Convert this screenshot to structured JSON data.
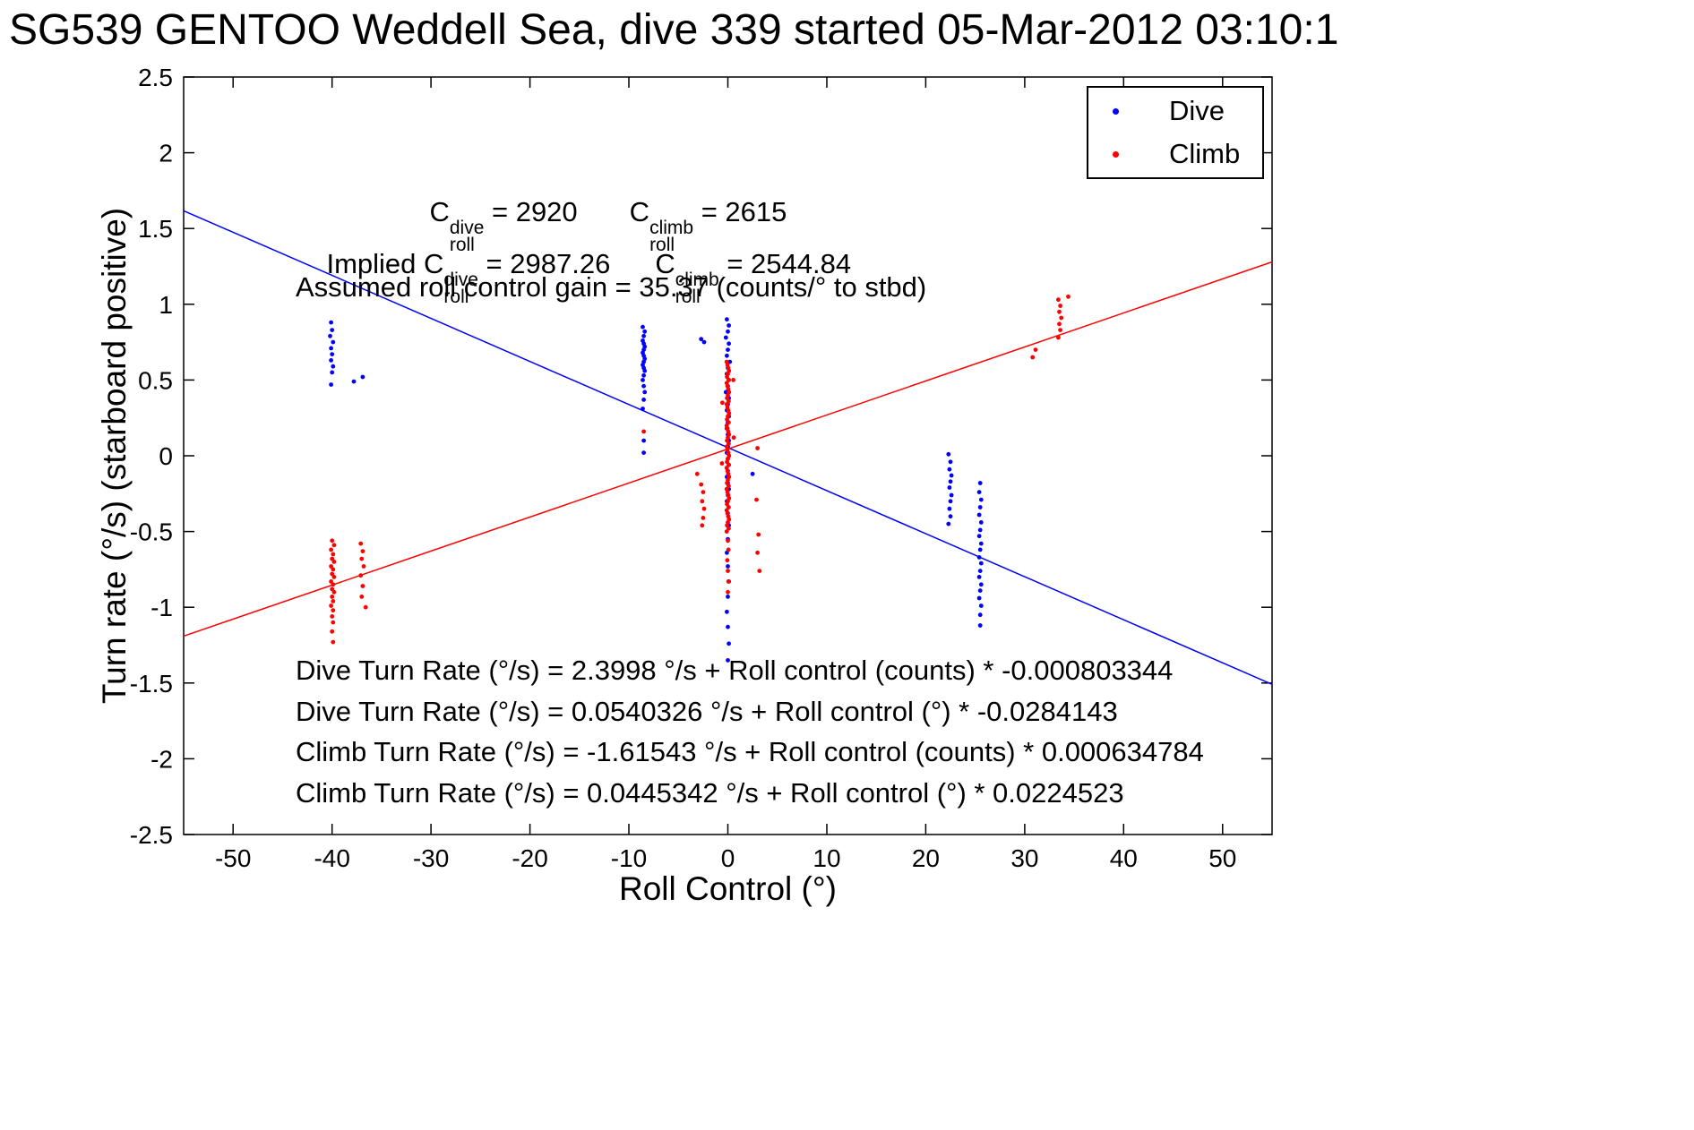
{
  "title": "SG539 GENTOO Weddell Sea, dive 339 started 05-Mar-2012 03:10:1",
  "chart_data": {
    "type": "scatter",
    "title": "SG539 GENTOO Weddell Sea, dive 339 started 05-Mar-2012 03:10:1",
    "xlabel": "Roll Control (°)",
    "ylabel": "Turn rate (°/s) (starboard positive)",
    "xlim": [
      -55,
      55
    ],
    "ylim": [
      -2.5,
      2.5
    ],
    "grid": false,
    "legend_position": "northeast",
    "xticks": [
      -50,
      -40,
      -30,
      -20,
      -10,
      0,
      10,
      20,
      30,
      40,
      50
    ],
    "xtick_labels": [
      "-50",
      "-40",
      "-30",
      "-20",
      "-10",
      "0",
      "10",
      "20",
      "30",
      "40",
      "50"
    ],
    "yticks": [
      -2.5,
      -2,
      -1.5,
      -1,
      -0.5,
      0,
      0.5,
      1,
      1.5,
      2,
      2.5
    ],
    "ytick_labels": [
      "-2.5",
      "-2",
      "-1.5",
      "-1",
      "-0.5",
      "0",
      "0.5",
      "1",
      "1.5",
      "2",
      "2.5"
    ],
    "series": [
      {
        "name": "dive",
        "label": "Dive",
        "color": "#0000FF",
        "marker": "point",
        "points": [
          [
            -40.1,
            0.88
          ],
          [
            -40,
            0.83
          ],
          [
            -40.2,
            0.79
          ],
          [
            -39.9,
            0.75
          ],
          [
            -40.1,
            0.71
          ],
          [
            -40,
            0.67
          ],
          [
            -40.1,
            0.63
          ],
          [
            -39.9,
            0.59
          ],
          [
            -40,
            0.55
          ],
          [
            -40.1,
            0.47
          ],
          [
            -37.8,
            0.49
          ],
          [
            -36.9,
            0.52
          ],
          [
            -8.6,
            0.85
          ],
          [
            -8.4,
            0.82
          ],
          [
            -8.5,
            0.79
          ],
          [
            -8.6,
            0.76
          ],
          [
            -8.5,
            0.74
          ],
          [
            -8.4,
            0.72
          ],
          [
            -8.5,
            0.7
          ],
          [
            -8.6,
            0.68
          ],
          [
            -8.5,
            0.66
          ],
          [
            -8.4,
            0.64
          ],
          [
            -8.5,
            0.62
          ],
          [
            -8.6,
            0.6
          ],
          [
            -8.5,
            0.58
          ],
          [
            -8.4,
            0.56
          ],
          [
            -8.5,
            0.53
          ],
          [
            -8.6,
            0.5
          ],
          [
            -8.5,
            0.46
          ],
          [
            -8.4,
            0.42
          ],
          [
            -8.5,
            0.37
          ],
          [
            -8.6,
            0.31
          ],
          [
            -8.5,
            0.1
          ],
          [
            -8.5,
            0.02
          ],
          [
            -2.7,
            0.77
          ],
          [
            -2.4,
            0.75
          ],
          [
            -0.1,
            0.9
          ],
          [
            0.1,
            0.86
          ],
          [
            0,
            0.82
          ],
          [
            -0.2,
            0.78
          ],
          [
            0.1,
            0.74
          ],
          [
            0,
            0.7
          ],
          [
            -0.1,
            0.66
          ],
          [
            0.2,
            0.62
          ],
          [
            0,
            0.58
          ],
          [
            -0.1,
            0.54
          ],
          [
            0.1,
            0.5
          ],
          [
            0,
            0.46
          ],
          [
            -0.2,
            0.42
          ],
          [
            0.1,
            0.38
          ],
          [
            0,
            0.34
          ],
          [
            -0.1,
            0.3
          ],
          [
            0.1,
            0.26
          ],
          [
            0,
            0.22
          ],
          [
            -0.1,
            0.18
          ],
          [
            0,
            0.14
          ],
          [
            0.1,
            0.1
          ],
          [
            0,
            0.06
          ],
          [
            -0.1,
            0.02
          ],
          [
            0,
            -0.02
          ],
          [
            0.1,
            -0.06
          ],
          [
            0,
            -0.1
          ],
          [
            -0.1,
            -0.14
          ],
          [
            0,
            -0.18
          ],
          [
            0.1,
            -0.22
          ],
          [
            0,
            -0.26
          ],
          [
            -0.1,
            -0.3
          ],
          [
            0,
            -0.38
          ],
          [
            0.1,
            -0.46
          ],
          [
            0,
            -0.55
          ],
          [
            -0.1,
            -0.64
          ],
          [
            0,
            -0.73
          ],
          [
            0.1,
            -0.83
          ],
          [
            0,
            -0.93
          ],
          [
            -0.1,
            -1.03
          ],
          [
            0,
            -1.13
          ],
          [
            0.1,
            -1.24
          ],
          [
            0,
            -1.35
          ],
          [
            2.5,
            -0.12
          ],
          [
            22.3,
            0.01
          ],
          [
            22.5,
            -0.04
          ],
          [
            22.4,
            -0.09
          ],
          [
            22.6,
            -0.13
          ],
          [
            22.5,
            -0.17
          ],
          [
            22.4,
            -0.21
          ],
          [
            22.6,
            -0.26
          ],
          [
            22.5,
            -0.3
          ],
          [
            22.4,
            -0.35
          ],
          [
            22.5,
            -0.4
          ],
          [
            22.3,
            -0.45
          ],
          [
            25.5,
            -0.18
          ],
          [
            25.4,
            -0.24
          ],
          [
            25.6,
            -0.29
          ],
          [
            25.5,
            -0.34
          ],
          [
            25.4,
            -0.39
          ],
          [
            25.6,
            -0.44
          ],
          [
            25.5,
            -0.49
          ],
          [
            25.4,
            -0.53
          ],
          [
            25.6,
            -0.58
          ],
          [
            25.5,
            -0.62
          ],
          [
            25.4,
            -0.67
          ],
          [
            25.6,
            -0.71
          ],
          [
            25.5,
            -0.76
          ],
          [
            25.4,
            -0.8
          ],
          [
            25.6,
            -0.85
          ],
          [
            25.5,
            -0.89
          ],
          [
            25.4,
            -0.94
          ],
          [
            25.6,
            -0.99
          ],
          [
            25.5,
            -1.05
          ],
          [
            25.5,
            -1.12
          ]
        ]
      },
      {
        "name": "climb",
        "label": "Climb",
        "color": "#FF0000",
        "marker": "point",
        "points": [
          [
            -40,
            -0.56
          ],
          [
            -39.8,
            -0.59
          ],
          [
            -40.1,
            -0.62
          ],
          [
            -39.9,
            -0.65
          ],
          [
            -40,
            -0.68
          ],
          [
            -39.8,
            -0.7
          ],
          [
            -40.1,
            -0.73
          ],
          [
            -39.9,
            -0.75
          ],
          [
            -40,
            -0.78
          ],
          [
            -39.8,
            -0.8
          ],
          [
            -40.1,
            -0.83
          ],
          [
            -39.9,
            -0.85
          ],
          [
            -40,
            -0.88
          ],
          [
            -39.8,
            -0.9
          ],
          [
            -40,
            -0.93
          ],
          [
            -39.9,
            -0.96
          ],
          [
            -40.1,
            -0.99
          ],
          [
            -39.9,
            -1.02
          ],
          [
            -40,
            -1.06
          ],
          [
            -39.9,
            -1.1
          ],
          [
            -40,
            -1.16
          ],
          [
            -39.9,
            -1.23
          ],
          [
            -37.1,
            -0.58
          ],
          [
            -36.9,
            -0.63
          ],
          [
            -37,
            -0.68
          ],
          [
            -36.8,
            -0.73
          ],
          [
            -37.1,
            -0.79
          ],
          [
            -36.9,
            -0.86
          ],
          [
            -37,
            -0.93
          ],
          [
            -36.6,
            -1
          ],
          [
            -3.1,
            -0.12
          ],
          [
            -2.7,
            -0.19
          ],
          [
            -2.5,
            -0.24
          ],
          [
            -2.6,
            -0.3
          ],
          [
            -2.4,
            -0.35
          ],
          [
            -2.5,
            -0.41
          ],
          [
            -2.6,
            -0.46
          ],
          [
            -8.5,
            0.16
          ],
          [
            -0.12,
            0.62
          ],
          [
            -0.04,
            0.6
          ],
          [
            0.04,
            0.58
          ],
          [
            0.12,
            0.56
          ],
          [
            0,
            0.54
          ],
          [
            -0.08,
            0.52
          ],
          [
            0.08,
            0.5
          ],
          [
            -0.12,
            0.48
          ],
          [
            -0.04,
            0.46
          ],
          [
            0.04,
            0.44
          ],
          [
            0.12,
            0.42
          ],
          [
            0,
            0.4
          ],
          [
            -0.08,
            0.38
          ],
          [
            0.08,
            0.36
          ],
          [
            -0.12,
            0.34
          ],
          [
            -0.04,
            0.32
          ],
          [
            0.04,
            0.3
          ],
          [
            0.12,
            0.28
          ],
          [
            0,
            0.26
          ],
          [
            -0.08,
            0.24
          ],
          [
            0.08,
            0.22
          ],
          [
            -0.12,
            0.2
          ],
          [
            -0.04,
            0.18
          ],
          [
            0.04,
            0.16
          ],
          [
            0.12,
            0.14
          ],
          [
            0,
            0.12
          ],
          [
            -0.08,
            0.1
          ],
          [
            0.08,
            0.08
          ],
          [
            -0.12,
            0.06
          ],
          [
            -0.04,
            0.04
          ],
          [
            0.04,
            0.02
          ],
          [
            0.12,
            0
          ],
          [
            0,
            -0.02
          ],
          [
            -0.08,
            -0.04
          ],
          [
            0.08,
            -0.06
          ],
          [
            -0.12,
            -0.08
          ],
          [
            -0.04,
            -0.1
          ],
          [
            0.04,
            -0.12
          ],
          [
            0.12,
            -0.14
          ],
          [
            0,
            -0.16
          ],
          [
            -0.08,
            -0.18
          ],
          [
            0.08,
            -0.2
          ],
          [
            -0.12,
            -0.22
          ],
          [
            -0.04,
            -0.24
          ],
          [
            0.04,
            -0.26
          ],
          [
            0.12,
            -0.28
          ],
          [
            0,
            -0.3
          ],
          [
            -0.08,
            -0.32
          ],
          [
            0.08,
            -0.34
          ],
          [
            -0.12,
            -0.36
          ],
          [
            -0.04,
            -0.38
          ],
          [
            0.04,
            -0.4
          ],
          [
            0.12,
            -0.42
          ],
          [
            0,
            -0.44
          ],
          [
            -0.08,
            -0.46
          ],
          [
            0.08,
            -0.48
          ],
          [
            -0.12,
            -0.5
          ],
          [
            0,
            -0.56
          ],
          [
            0.05,
            -0.62
          ],
          [
            -0.05,
            -0.69
          ],
          [
            0,
            -0.76
          ],
          [
            0.05,
            -0.83
          ],
          [
            0,
            -0.9
          ],
          [
            0.55,
            0.5
          ],
          [
            -0.55,
            0.35
          ],
          [
            0.6,
            0.12
          ],
          [
            -0.6,
            -0.05
          ],
          [
            3,
            0.05
          ],
          [
            2.9,
            -0.29
          ],
          [
            3.1,
            -0.52
          ],
          [
            3,
            -0.64
          ],
          [
            3.2,
            -0.76
          ],
          [
            30.8,
            0.65
          ],
          [
            31.1,
            0.7
          ],
          [
            33.4,
            0.78
          ],
          [
            33.6,
            0.83
          ],
          [
            33.5,
            0.87
          ],
          [
            33.7,
            0.91
          ],
          [
            33.5,
            0.95
          ],
          [
            33.6,
            0.99
          ],
          [
            33.4,
            1.03
          ],
          [
            34.4,
            1.05
          ]
        ]
      }
    ],
    "fit_lines": [
      {
        "name": "dive-fit-line",
        "color": "#0000FF",
        "slope": -0.0284143,
        "intercept": 0.0540326
      },
      {
        "name": "climb-fit-line",
        "color": "#FF0000",
        "slope": 0.0224523,
        "intercept": 0.0445342
      }
    ]
  },
  "annotations": {
    "line1": {
      "c": "C",
      "sup": "dive",
      "sub": "roll",
      "eq": " = 2920",
      "c2": "C",
      "sup2": "climb",
      "sub2": "roll",
      "eq2": " = 2615"
    },
    "line2": {
      "prefix": "Implied ",
      "c": "C",
      "sup": "dive",
      "sub": "roll",
      "eq": " = 2987.26",
      "c2": "C",
      "sup2": "climb",
      "sub2": "roll",
      "eq2": " = 2544.84"
    },
    "line3": "Assumed roll control gain = 35.37 (counts/° to stbd)",
    "fit_lines": [
      "Dive Turn Rate (°/s) = 2.3998 °/s + Roll control (counts) * -0.000803344",
      "Dive Turn Rate (°/s) = 0.0540326 °/s + Roll control (°) * -0.0284143",
      "Climb Turn Rate (°/s) = -1.61543 °/s + Roll control (counts) * 0.000634784",
      "Climb Turn Rate (°/s) = 0.0445342 °/s + Roll control (°) * 0.0224523"
    ]
  }
}
